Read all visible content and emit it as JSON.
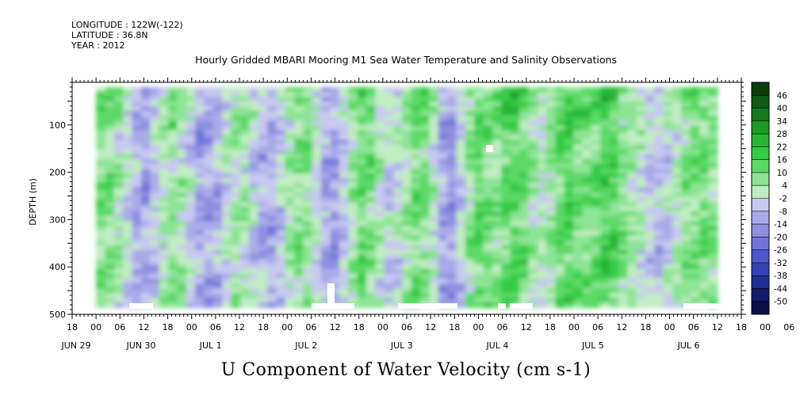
{
  "header": {
    "longitude": "LONGITUDE : 122W(-122)",
    "latitude": "LATITUDE : 36.8N",
    "year": "YEAR : 2012"
  },
  "chart_data": {
    "type": "heatmap",
    "title": "Hourly Gridded MBARI Mooring M1 Sea Water Temperature and Salinity Observations",
    "xlabel": "U Component of Water Velocity (cm s-1)",
    "ylabel": "DEPTH (m)",
    "ylim": [
      500,
      10
    ],
    "y_ticks": [
      100,
      200,
      300,
      400,
      500
    ],
    "x_hour_ticks": [
      "18",
      "00",
      "06",
      "12",
      "18",
      "00",
      "06",
      "12",
      "18",
      "00",
      "06",
      "12",
      "18",
      "00",
      "06",
      "12",
      "18",
      "00",
      "06",
      "12",
      "18",
      "00",
      "06",
      "12",
      "18",
      "00",
      "06",
      "12",
      "18",
      "00",
      "06",
      "12"
    ],
    "x_day_labels": [
      "JUN 29",
      "JUN 30",
      "JUL  1",
      "JUL  2",
      "JUL  3",
      "JUL  4",
      "JUL  5",
      "JUL  6"
    ],
    "colorbar": {
      "levels": [
        46,
        40,
        34,
        28,
        22,
        16,
        10,
        4,
        -2,
        -8,
        -14,
        -20,
        -26,
        -32,
        -38,
        -44,
        -50
      ],
      "colors": [
        "#0b3d0b",
        "#0f5a12",
        "#167a1c",
        "#1f9a28",
        "#27b534",
        "#35cb45",
        "#5cd966",
        "#8de495",
        "#c0ecc2",
        "#c8c8f0",
        "#a9aae8",
        "#8d8fe0",
        "#6f74d8",
        "#4e58cb",
        "#3442b6",
        "#222e94",
        "#131b6b",
        "#0a0f48"
      ]
    },
    "x_start_hours_from_jun29_18": 6,
    "x_end_hours_from_jun29_18": 162,
    "time_columns_mean_u": [
      6,
      10,
      4,
      -4,
      -10,
      -14,
      -8,
      2,
      8,
      4,
      -6,
      -12,
      -14,
      -10,
      -2,
      6,
      4,
      -4,
      -10,
      -12,
      -6,
      4,
      10,
      8,
      -2,
      -12,
      -16,
      -8,
      6,
      14,
      10,
      2,
      -6,
      -4,
      4,
      12,
      10,
      0,
      -14,
      -18,
      -6,
      8,
      14,
      10,
      6,
      12,
      16,
      12,
      4,
      -2,
      4,
      12,
      16,
      10,
      8,
      12,
      18,
      14,
      8,
      4,
      2,
      -6,
      -8,
      -4,
      2,
      8,
      12,
      10,
      6
    ]
  }
}
